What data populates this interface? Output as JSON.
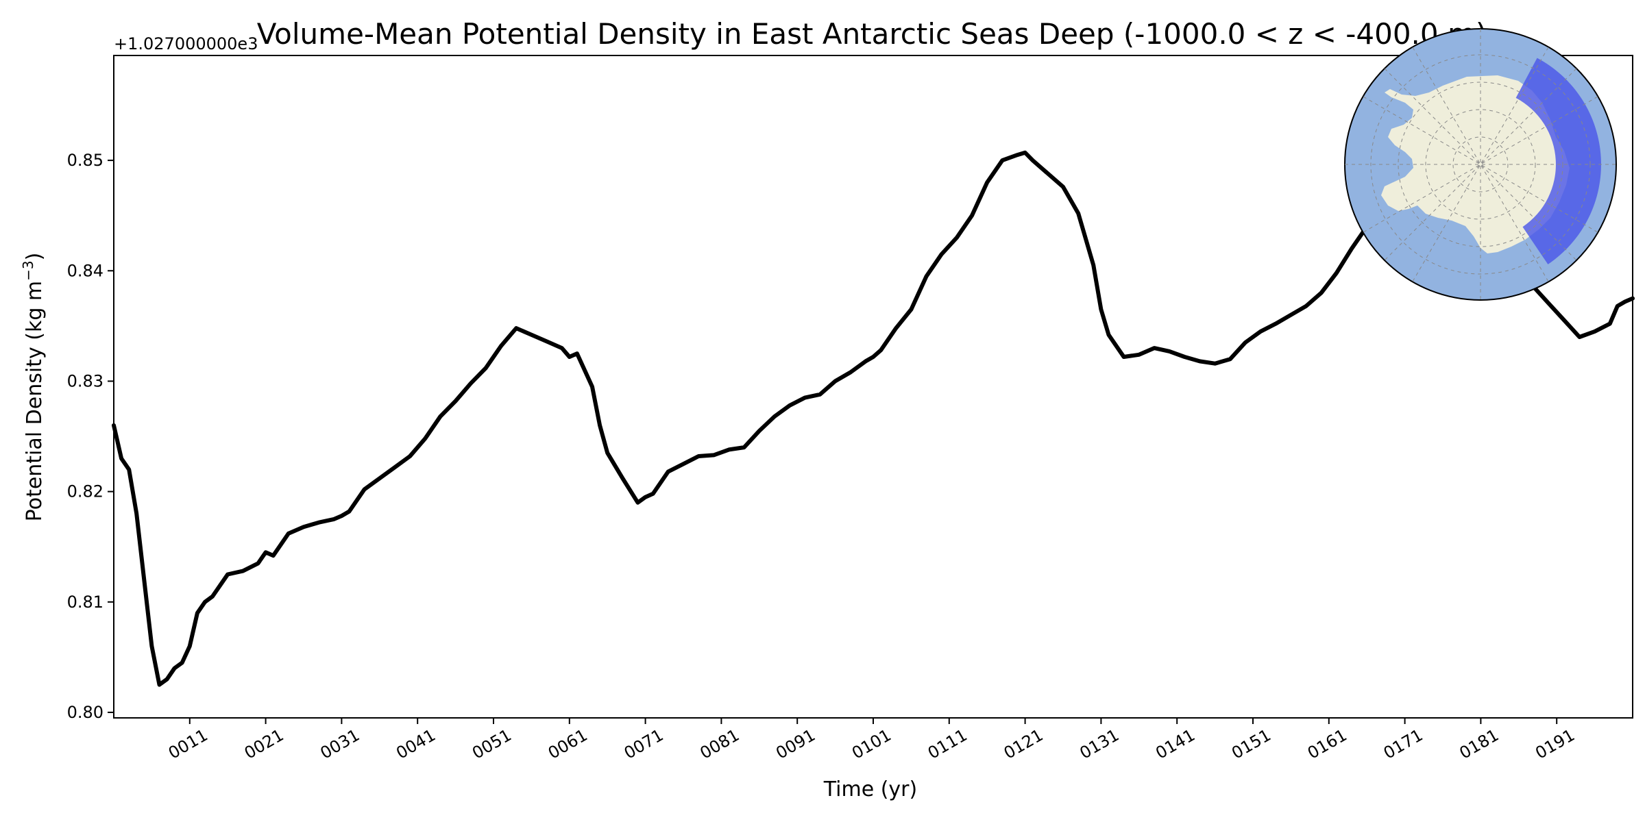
{
  "chart_data": {
    "type": "line",
    "title": "Volume-Mean Potential Density in East Antarctic Seas Deep (-1000.0 < z < -400.0 m)",
    "xlabel": "Time (yr)",
    "ylabel": "Potential Density (kg m",
    "ylabel_sup": "−3",
    "ylabel_end": ")",
    "y_offset_text": "+1.027000000e3",
    "xlim": [
      1,
      201
    ],
    "ylim": [
      0.7995,
      0.8595
    ],
    "grid": false,
    "x_ticks": [
      11,
      21,
      31,
      41,
      51,
      61,
      71,
      81,
      91,
      101,
      111,
      121,
      131,
      141,
      151,
      161,
      171,
      181,
      191
    ],
    "x_tick_labels": [
      "0011",
      "0021",
      "0031",
      "0041",
      "0051",
      "0061",
      "0071",
      "0081",
      "0091",
      "0101",
      "0111",
      "0121",
      "0131",
      "0141",
      "0151",
      "0161",
      "0171",
      "0181",
      "0191"
    ],
    "y_ticks": [
      0.8,
      0.81,
      0.82,
      0.83,
      0.84,
      0.85
    ],
    "y_tick_labels": [
      "0.80",
      "0.81",
      "0.82",
      "0.83",
      "0.84",
      "0.85"
    ],
    "series": [
      {
        "color": "#000000",
        "x": [
          1,
          2,
          3,
          4,
          5,
          6,
          7,
          8,
          9,
          10,
          11,
          12,
          13,
          14,
          16,
          18,
          20,
          21,
          22,
          24,
          26,
          28,
          30,
          31,
          32,
          34,
          36,
          38,
          40,
          42,
          44,
          46,
          48,
          50,
          51,
          52,
          54,
          56,
          58,
          60,
          61,
          62,
          64,
          65,
          66,
          68,
          70,
          71,
          72,
          74,
          76,
          78,
          80,
          82,
          84,
          86,
          88,
          90,
          92,
          94,
          96,
          98,
          100,
          101,
          102,
          104,
          106,
          108,
          110,
          112,
          114,
          116,
          118,
          120,
          121,
          122,
          124,
          126,
          128,
          130,
          131,
          132,
          134,
          136,
          138,
          140,
          142,
          144,
          146,
          148,
          150,
          152,
          154,
          156,
          158,
          160,
          162,
          164,
          166,
          168,
          170,
          172,
          174,
          176,
          178,
          180,
          182,
          184,
          186,
          188,
          190,
          192,
          194,
          196,
          198,
          199,
          200,
          201
        ],
        "y": [
          0.826,
          0.823,
          0.822,
          0.818,
          0.812,
          0.806,
          0.8025,
          0.803,
          0.804,
          0.8045,
          0.806,
          0.809,
          0.81,
          0.8105,
          0.8125,
          0.8128,
          0.8135,
          0.8145,
          0.8142,
          0.8162,
          0.8168,
          0.8172,
          0.8175,
          0.8178,
          0.8182,
          0.8202,
          0.8212,
          0.8222,
          0.8232,
          0.8248,
          0.8268,
          0.8282,
          0.8298,
          0.8312,
          0.8322,
          0.8332,
          0.8348,
          0.8342,
          0.8336,
          0.833,
          0.8322,
          0.8325,
          0.8295,
          0.826,
          0.8235,
          0.8212,
          0.819,
          0.8195,
          0.8198,
          0.8218,
          0.8225,
          0.8232,
          0.8233,
          0.8238,
          0.824,
          0.8255,
          0.8268,
          0.8278,
          0.8285,
          0.8288,
          0.83,
          0.8308,
          0.8318,
          0.8322,
          0.8328,
          0.8348,
          0.8365,
          0.8395,
          0.8415,
          0.843,
          0.845,
          0.848,
          0.85,
          0.8505,
          0.8507,
          0.85,
          0.8488,
          0.8476,
          0.8452,
          0.8405,
          0.8365,
          0.8342,
          0.8322,
          0.8324,
          0.833,
          0.8327,
          0.8322,
          0.8318,
          0.8316,
          0.832,
          0.8335,
          0.8345,
          0.8352,
          0.836,
          0.8368,
          0.838,
          0.8398,
          0.842,
          0.844,
          0.8465,
          0.849,
          0.85,
          0.8502,
          0.8505,
          0.8498,
          0.848,
          0.846,
          0.844,
          0.841,
          0.8385,
          0.837,
          0.8355,
          0.834,
          0.8345,
          0.8352,
          0.8368,
          0.8372,
          0.8375
        ]
      }
    ]
  },
  "inset_map": {
    "ocean_color": "#92b3e0",
    "land_color": "#efeedb",
    "region_color": "#4a55e8"
  }
}
